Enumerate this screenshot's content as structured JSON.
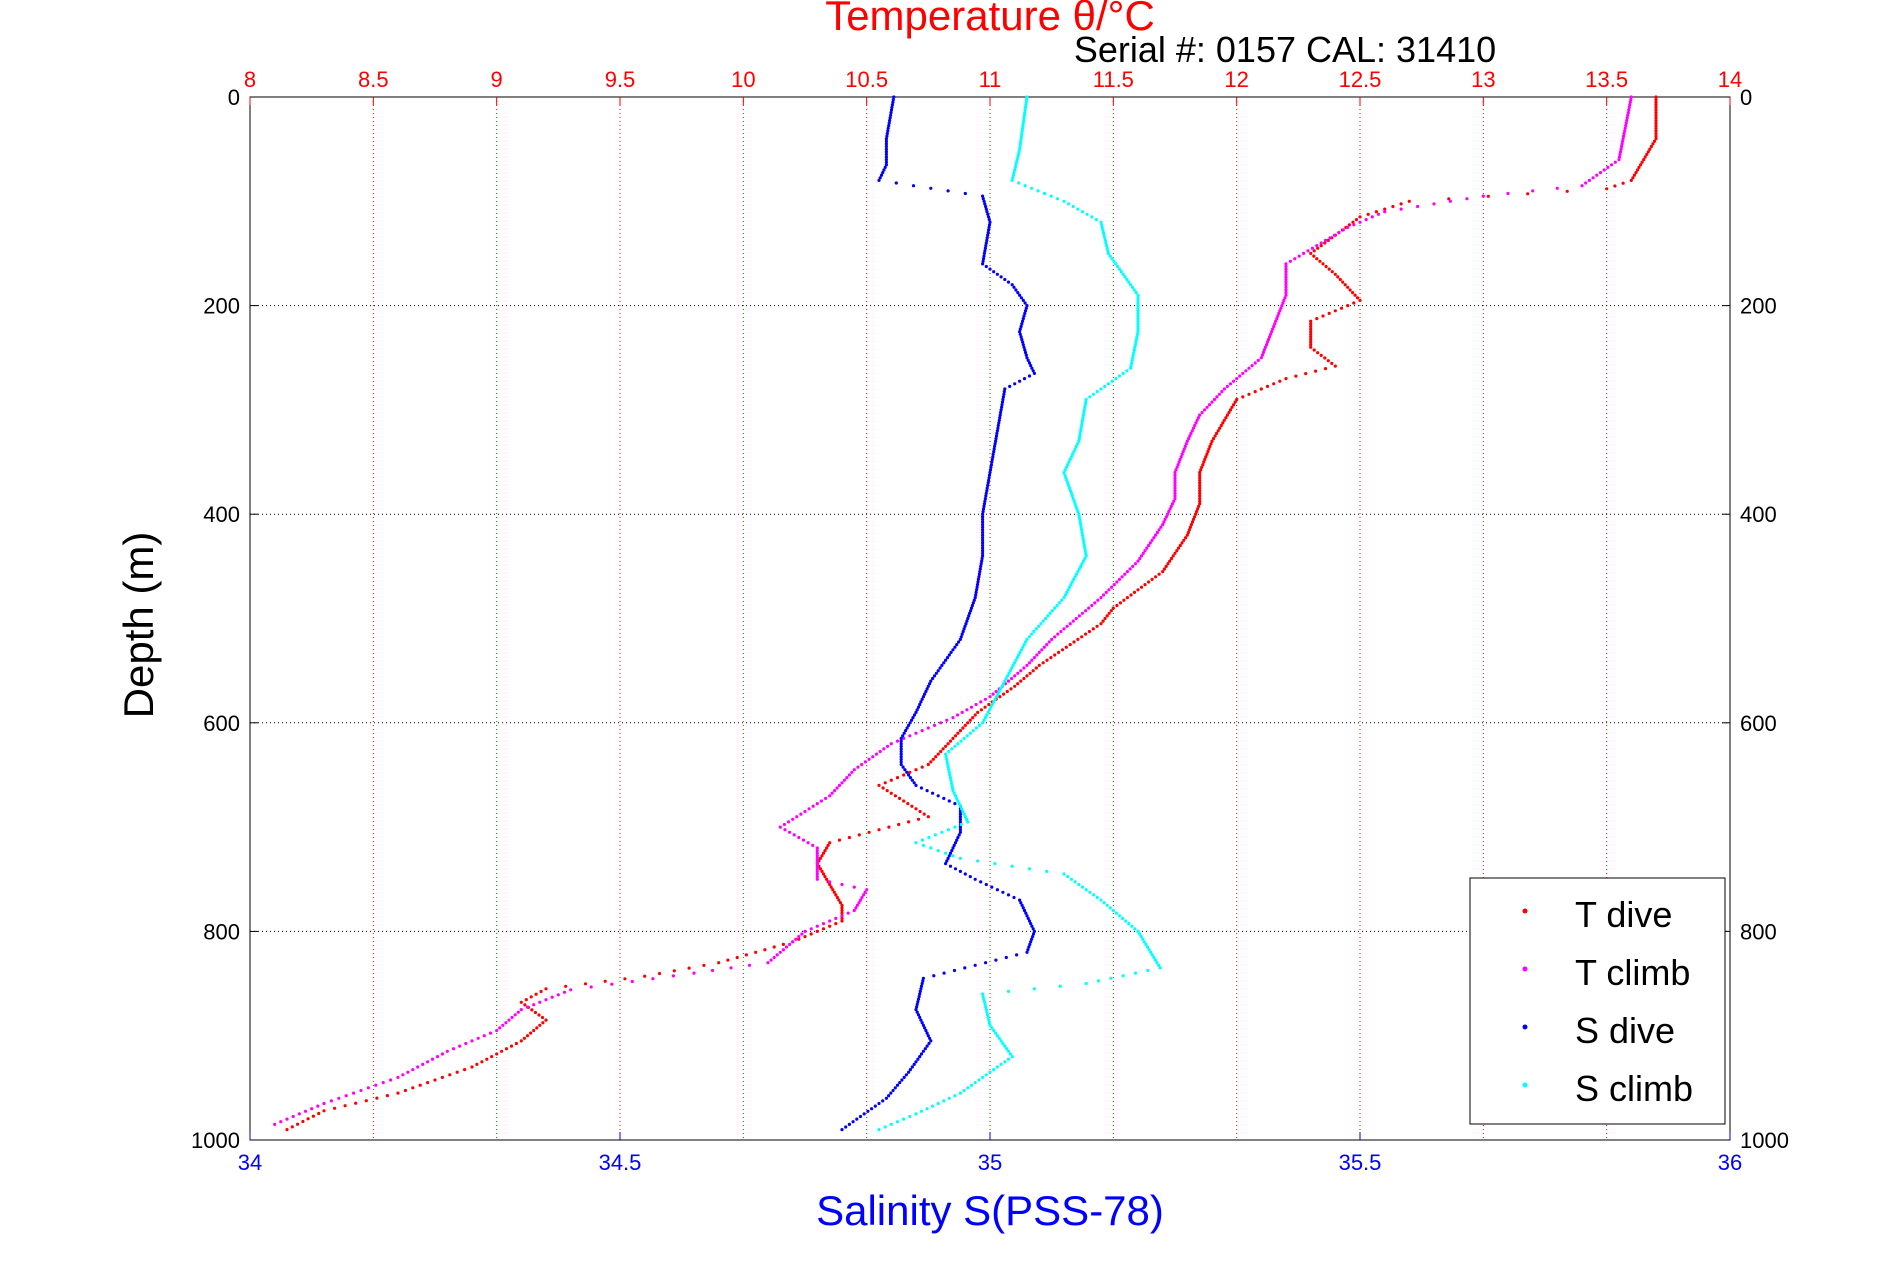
{
  "chart_data": {
    "type": "scatter",
    "title": "Temperature θ/°C",
    "subtitle": "Serial #: 0157  CAL: 31410",
    "ylabel": "Depth (m)",
    "xlabel": "Salinity S(PSS-78)",
    "y_axis": {
      "range": [
        0,
        1000
      ],
      "reversed": true,
      "ticks": [
        "0",
        "200",
        "400",
        "600",
        "800",
        "1000"
      ]
    },
    "x_axis_salinity": {
      "range": [
        34,
        36
      ],
      "ticks": [
        "34",
        "34.5",
        "35",
        "35.5",
        "36"
      ]
    },
    "x_axis_temperature": {
      "range": [
        8,
        14
      ],
      "ticks": [
        "8",
        "8.5",
        "9",
        "9.5",
        "10",
        "10.5",
        "11",
        "11.5",
        "12",
        "12.5",
        "13",
        "13.5",
        "14"
      ]
    },
    "grid": true,
    "legend": {
      "position": "bottom-right",
      "entries": [
        "T dive",
        "T climb",
        "S dive",
        "S climb"
      ]
    },
    "colors": {
      "T dive": "#ff0000",
      "T climb": "#ff00ff",
      "S dive": "#0000ff",
      "S climb": "#00ffff",
      "temperature_axis": "#ff0000",
      "salinity_axis": "#0000ff"
    },
    "series": [
      {
        "name": "T dive",
        "axis": "temperature",
        "points": [
          [
            13.7,
            0
          ],
          [
            13.7,
            40
          ],
          [
            13.6,
            80
          ],
          [
            13.5,
            88
          ],
          [
            12.7,
            100
          ],
          [
            12.5,
            115
          ],
          [
            12.3,
            150
          ],
          [
            12.4,
            170
          ],
          [
            12.5,
            195
          ],
          [
            12.3,
            215
          ],
          [
            12.3,
            240
          ],
          [
            12.4,
            258
          ],
          [
            12.2,
            270
          ],
          [
            12.0,
            290
          ],
          [
            11.9,
            330
          ],
          [
            11.85,
            360
          ],
          [
            11.85,
            390
          ],
          [
            11.8,
            420
          ],
          [
            11.7,
            455
          ],
          [
            11.5,
            490
          ],
          [
            11.45,
            505
          ],
          [
            11.2,
            545
          ],
          [
            11.1,
            565
          ],
          [
            10.95,
            590
          ],
          [
            10.85,
            615
          ],
          [
            10.75,
            640
          ],
          [
            10.55,
            660
          ],
          [
            10.75,
            690
          ],
          [
            10.35,
            715
          ],
          [
            10.3,
            735
          ],
          [
            10.35,
            755
          ],
          [
            10.4,
            775
          ],
          [
            10.4,
            790
          ],
          [
            10.2,
            810
          ],
          [
            9.9,
            830
          ],
          [
            9.6,
            843
          ],
          [
            9.2,
            855
          ],
          [
            9.1,
            868
          ],
          [
            9.2,
            885
          ],
          [
            9.1,
            905
          ],
          [
            8.9,
            930
          ],
          [
            8.6,
            955
          ],
          [
            8.3,
            972
          ],
          [
            8.15,
            990
          ]
        ]
      },
      {
        "name": "T climb",
        "axis": "temperature",
        "points": [
          [
            13.6,
            0
          ],
          [
            13.55,
            60
          ],
          [
            13.4,
            85
          ],
          [
            13.0,
            95
          ],
          [
            12.6,
            110
          ],
          [
            12.45,
            125
          ],
          [
            12.2,
            160
          ],
          [
            12.2,
            190
          ],
          [
            12.15,
            220
          ],
          [
            12.1,
            250
          ],
          [
            11.95,
            280
          ],
          [
            11.85,
            305
          ],
          [
            11.8,
            330
          ],
          [
            11.75,
            360
          ],
          [
            11.75,
            385
          ],
          [
            11.7,
            410
          ],
          [
            11.6,
            445
          ],
          [
            11.45,
            480
          ],
          [
            11.25,
            520
          ],
          [
            11.15,
            545
          ],
          [
            11.0,
            575
          ],
          [
            10.85,
            595
          ],
          [
            10.6,
            620
          ],
          [
            10.45,
            645
          ],
          [
            10.35,
            670
          ],
          [
            10.15,
            700
          ],
          [
            10.3,
            720
          ],
          [
            10.3,
            750
          ],
          [
            10.5,
            760
          ],
          [
            10.45,
            780
          ],
          [
            10.25,
            800
          ],
          [
            10.1,
            830
          ],
          [
            9.8,
            840
          ],
          [
            9.3,
            856
          ],
          [
            9.1,
            875
          ],
          [
            9.0,
            895
          ],
          [
            8.8,
            915
          ],
          [
            8.6,
            940
          ],
          [
            8.3,
            965
          ],
          [
            8.1,
            985
          ]
        ]
      },
      {
        "name": "S dive",
        "axis": "salinity",
        "points": [
          [
            34.87,
            0
          ],
          [
            34.86,
            40
          ],
          [
            34.86,
            65
          ],
          [
            34.85,
            80
          ],
          [
            34.99,
            95
          ],
          [
            35.0,
            120
          ],
          [
            34.99,
            160
          ],
          [
            35.03,
            180
          ],
          [
            35.05,
            200
          ],
          [
            35.04,
            225
          ],
          [
            35.05,
            250
          ],
          [
            35.06,
            265
          ],
          [
            35.02,
            280
          ],
          [
            35.01,
            320
          ],
          [
            35.0,
            360
          ],
          [
            34.99,
            400
          ],
          [
            34.99,
            440
          ],
          [
            34.98,
            480
          ],
          [
            34.96,
            520
          ],
          [
            34.92,
            560
          ],
          [
            34.9,
            590
          ],
          [
            34.88,
            615
          ],
          [
            34.88,
            640
          ],
          [
            34.9,
            660
          ],
          [
            34.96,
            680
          ],
          [
            34.96,
            705
          ],
          [
            34.94,
            735
          ],
          [
            34.98,
            750
          ],
          [
            35.04,
            770
          ],
          [
            35.06,
            800
          ],
          [
            35.05,
            820
          ],
          [
            34.91,
            845
          ],
          [
            34.9,
            875
          ],
          [
            34.92,
            905
          ],
          [
            34.89,
            935
          ],
          [
            34.86,
            960
          ],
          [
            34.8,
            990
          ]
        ]
      },
      {
        "name": "S climb",
        "axis": "salinity",
        "points": [
          [
            35.05,
            0
          ],
          [
            35.04,
            50
          ],
          [
            35.03,
            80
          ],
          [
            35.1,
            100
          ],
          [
            35.15,
            120
          ],
          [
            35.16,
            150
          ],
          [
            35.2,
            190
          ],
          [
            35.2,
            225
          ],
          [
            35.19,
            260
          ],
          [
            35.13,
            290
          ],
          [
            35.12,
            330
          ],
          [
            35.1,
            360
          ],
          [
            35.12,
            400
          ],
          [
            35.13,
            440
          ],
          [
            35.1,
            480
          ],
          [
            35.05,
            520
          ],
          [
            35.02,
            560
          ],
          [
            34.99,
            600
          ],
          [
            34.94,
            630
          ],
          [
            34.95,
            665
          ],
          [
            34.97,
            695
          ],
          [
            34.9,
            715
          ],
          [
            34.96,
            730
          ],
          [
            35.1,
            745
          ],
          [
            35.15,
            770
          ],
          [
            35.2,
            800
          ],
          [
            35.23,
            835
          ],
          [
            35.13,
            850
          ],
          [
            34.99,
            860
          ],
          [
            35.0,
            890
          ],
          [
            35.03,
            920
          ],
          [
            34.96,
            955
          ],
          [
            34.9,
            975
          ],
          [
            34.85,
            990
          ]
        ]
      }
    ]
  }
}
